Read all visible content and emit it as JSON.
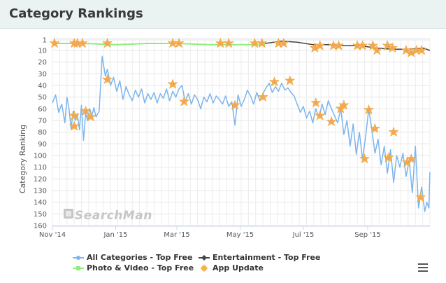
{
  "header": {
    "title": "Category Rankings"
  },
  "watermark": "SearchMan",
  "colors": {
    "all_categories": "#7cb5ec",
    "photo_video": "#90ed7d",
    "entertainment": "#434348",
    "app_update": "#f7a35c"
  },
  "legend": {
    "all_categories": "All Categories - Top Free",
    "entertainment": "Entertainment - Top Free",
    "photo_video": "Photo & Video - Top Free",
    "app_update": "App Update"
  },
  "menu_icon": "hamburger-menu-icon",
  "chart_data": {
    "type": "line",
    "title": "Category Rankings",
    "xlabel": "",
    "ylabel": "Category Ranking",
    "y_reversed": true,
    "ylim": [
      1,
      160
    ],
    "yticks": [
      1,
      10,
      20,
      30,
      40,
      50,
      60,
      70,
      80,
      90,
      100,
      110,
      120,
      130,
      140,
      150,
      160
    ],
    "x_range": [
      "2014-11-01",
      "2015-10-31"
    ],
    "xticks": [
      {
        "date": "2014-11-01",
        "label": "Nov '14"
      },
      {
        "date": "2015-01-01",
        "label": "Jan '15"
      },
      {
        "date": "2015-03-01",
        "label": "Mar '15"
      },
      {
        "date": "2015-05-01",
        "label": "May '15"
      },
      {
        "date": "2015-07-01",
        "label": "Jul '15"
      },
      {
        "date": "2015-09-01",
        "label": "Sep '15"
      }
    ],
    "grid": true,
    "legend_position": "bottom",
    "series": [
      {
        "name": "All Categories - Top Free",
        "points": [
          [
            "2014-11-01",
            55
          ],
          [
            "2014-11-04",
            48
          ],
          [
            "2014-11-07",
            63
          ],
          [
            "2014-11-10",
            56
          ],
          [
            "2014-11-13",
            72
          ],
          [
            "2014-11-15",
            50
          ],
          [
            "2014-11-17",
            60
          ],
          [
            "2014-11-19",
            77
          ],
          [
            "2014-11-21",
            62
          ],
          [
            "2014-11-23",
            70
          ],
          [
            "2014-11-25",
            64
          ],
          [
            "2014-11-27",
            78
          ],
          [
            "2014-11-29",
            57
          ],
          [
            "2014-12-01",
            87
          ],
          [
            "2014-12-03",
            64
          ],
          [
            "2014-12-05",
            70
          ],
          [
            "2014-12-07",
            60
          ],
          [
            "2014-12-09",
            66
          ],
          [
            "2014-12-11",
            59
          ],
          [
            "2014-12-13",
            67
          ],
          [
            "2014-12-16",
            62
          ],
          [
            "2014-12-19",
            15
          ],
          [
            "2014-12-22",
            32
          ],
          [
            "2014-12-24",
            26
          ],
          [
            "2014-12-27",
            40
          ],
          [
            "2014-12-30",
            33
          ],
          [
            "2015-01-02",
            45
          ],
          [
            "2015-01-05",
            36
          ],
          [
            "2015-01-08",
            52
          ],
          [
            "2015-01-11",
            41
          ],
          [
            "2015-01-14",
            48
          ],
          [
            "2015-01-17",
            53
          ],
          [
            "2015-01-20",
            44
          ],
          [
            "2015-01-23",
            50
          ],
          [
            "2015-01-26",
            43
          ],
          [
            "2015-01-29",
            55
          ],
          [
            "2015-02-01",
            47
          ],
          [
            "2015-02-04",
            52
          ],
          [
            "2015-02-07",
            46
          ],
          [
            "2015-02-10",
            55
          ],
          [
            "2015-02-13",
            47
          ],
          [
            "2015-02-16",
            51
          ],
          [
            "2015-02-19",
            43
          ],
          [
            "2015-02-22",
            53
          ],
          [
            "2015-02-25",
            45
          ],
          [
            "2015-02-28",
            50
          ],
          [
            "2015-03-03",
            43
          ],
          [
            "2015-03-06",
            40
          ],
          [
            "2015-03-09",
            54
          ],
          [
            "2015-03-12",
            47
          ],
          [
            "2015-03-15",
            56
          ],
          [
            "2015-03-18",
            48
          ],
          [
            "2015-03-21",
            52
          ],
          [
            "2015-03-24",
            60
          ],
          [
            "2015-03-27",
            50
          ],
          [
            "2015-03-30",
            54
          ],
          [
            "2015-04-02",
            47
          ],
          [
            "2015-04-05",
            55
          ],
          [
            "2015-04-08",
            49
          ],
          [
            "2015-04-11",
            52
          ],
          [
            "2015-04-14",
            56
          ],
          [
            "2015-04-17",
            49
          ],
          [
            "2015-04-20",
            58
          ],
          [
            "2015-04-23",
            54
          ],
          [
            "2015-04-26",
            74
          ],
          [
            "2015-04-29",
            48
          ],
          [
            "2015-05-02",
            58
          ],
          [
            "2015-05-05",
            52
          ],
          [
            "2015-05-08",
            44
          ],
          [
            "2015-05-11",
            49
          ],
          [
            "2015-05-14",
            56
          ],
          [
            "2015-05-17",
            46
          ],
          [
            "2015-05-20",
            53
          ],
          [
            "2015-05-23",
            47
          ],
          [
            "2015-05-26",
            42
          ],
          [
            "2015-05-29",
            38
          ],
          [
            "2015-06-01",
            46
          ],
          [
            "2015-06-04",
            41
          ],
          [
            "2015-06-07",
            45
          ],
          [
            "2015-06-10",
            38
          ],
          [
            "2015-06-13",
            44
          ],
          [
            "2015-06-16",
            42
          ],
          [
            "2015-06-19",
            46
          ],
          [
            "2015-06-22",
            49
          ],
          [
            "2015-06-25",
            56
          ],
          [
            "2015-06-28",
            63
          ],
          [
            "2015-07-01",
            58
          ],
          [
            "2015-07-04",
            68
          ],
          [
            "2015-07-07",
            62
          ],
          [
            "2015-07-10",
            72
          ],
          [
            "2015-07-13",
            60
          ],
          [
            "2015-07-16",
            68
          ],
          [
            "2015-07-19",
            56
          ],
          [
            "2015-07-22",
            65
          ],
          [
            "2015-07-25",
            53
          ],
          [
            "2015-07-28",
            60
          ],
          [
            "2015-07-31",
            66
          ],
          [
            "2015-08-03",
            72
          ],
          [
            "2015-08-06",
            60
          ],
          [
            "2015-08-09",
            82
          ],
          [
            "2015-08-12",
            70
          ],
          [
            "2015-08-15",
            92
          ],
          [
            "2015-08-18",
            73
          ],
          [
            "2015-08-21",
            99
          ],
          [
            "2015-08-24",
            80
          ],
          [
            "2015-08-27",
            103
          ],
          [
            "2015-08-30",
            84
          ],
          [
            "2015-09-02",
            60
          ],
          [
            "2015-09-05",
            78
          ],
          [
            "2015-09-08",
            98
          ],
          [
            "2015-09-11",
            86
          ],
          [
            "2015-09-14",
            108
          ],
          [
            "2015-09-17",
            92
          ],
          [
            "2015-09-20",
            115
          ],
          [
            "2015-09-23",
            95
          ],
          [
            "2015-09-26",
            123
          ],
          [
            "2015-09-29",
            100
          ],
          [
            "2015-10-02",
            110
          ],
          [
            "2015-10-05",
            98
          ],
          [
            "2015-10-08",
            118
          ],
          [
            "2015-10-11",
            104
          ],
          [
            "2015-10-14",
            132
          ],
          [
            "2015-10-17",
            92
          ],
          [
            "2015-10-20",
            145
          ],
          [
            "2015-10-23",
            127
          ],
          [
            "2015-10-26",
            148
          ],
          [
            "2015-10-28",
            140
          ],
          [
            "2015-10-30",
            145
          ],
          [
            "2015-10-31",
            114
          ]
        ]
      },
      {
        "name": "Photo & Video - Top Free",
        "points": [
          [
            "2014-11-01",
            4
          ],
          [
            "2014-12-01",
            4
          ],
          [
            "2015-01-01",
            5
          ],
          [
            "2015-02-01",
            4
          ],
          [
            "2015-03-01",
            4
          ],
          [
            "2015-04-01",
            5
          ],
          [
            "2015-05-01",
            5
          ],
          [
            "2015-05-25",
            5
          ]
        ]
      },
      {
        "name": "Entertainment - Top Free",
        "points": [
          [
            "2015-05-25",
            4
          ],
          [
            "2015-06-10",
            2
          ],
          [
            "2015-06-25",
            3
          ],
          [
            "2015-07-10",
            5
          ],
          [
            "2015-07-25",
            5
          ],
          [
            "2015-08-10",
            6
          ],
          [
            "2015-08-25",
            6
          ],
          [
            "2015-09-10",
            8
          ],
          [
            "2015-09-25",
            9
          ],
          [
            "2015-10-10",
            9
          ],
          [
            "2015-10-25",
            8
          ],
          [
            "2015-10-31",
            10
          ]
        ]
      },
      {
        "name": "App Update",
        "points": [
          [
            "2014-11-03",
            4
          ],
          [
            "2014-11-22",
            4
          ],
          [
            "2014-11-25",
            4
          ],
          [
            "2014-11-30",
            4
          ],
          [
            "2014-12-24",
            4
          ],
          [
            "2015-02-25",
            4
          ],
          [
            "2015-03-03",
            4
          ],
          [
            "2015-04-12",
            4
          ],
          [
            "2015-04-20",
            4
          ],
          [
            "2015-05-15",
            4
          ],
          [
            "2015-05-22",
            4
          ],
          [
            "2015-06-07",
            4
          ],
          [
            "2015-06-12",
            4
          ],
          [
            "2015-07-12",
            8
          ],
          [
            "2015-07-17",
            6
          ],
          [
            "2015-07-30",
            6
          ],
          [
            "2015-08-04",
            6
          ],
          [
            "2015-08-22",
            6
          ],
          [
            "2015-08-27",
            6
          ],
          [
            "2015-09-06",
            6
          ],
          [
            "2015-09-10",
            10
          ],
          [
            "2015-09-20",
            6
          ],
          [
            "2015-09-25",
            8
          ],
          [
            "2015-10-08",
            10
          ],
          [
            "2015-10-13",
            12
          ],
          [
            "2015-10-18",
            10
          ],
          [
            "2015-10-23",
            10
          ],
          [
            "2014-11-22",
            66
          ],
          [
            "2014-11-22",
            75
          ],
          [
            "2014-12-03",
            62
          ],
          [
            "2014-12-08",
            67
          ],
          [
            "2014-12-24",
            35
          ],
          [
            "2015-02-25",
            39
          ],
          [
            "2015-03-08",
            54
          ],
          [
            "2015-04-26",
            57
          ],
          [
            "2015-05-23",
            50
          ],
          [
            "2015-06-03",
            37
          ],
          [
            "2015-06-18",
            36
          ],
          [
            "2015-07-13",
            55
          ],
          [
            "2015-07-17",
            66
          ],
          [
            "2015-07-28",
            71
          ],
          [
            "2015-08-06",
            60
          ],
          [
            "2015-08-09",
            57
          ],
          [
            "2015-08-29",
            103
          ],
          [
            "2015-09-02",
            61
          ],
          [
            "2015-09-08",
            77
          ],
          [
            "2015-09-21",
            102
          ],
          [
            "2015-09-26",
            80
          ],
          [
            "2015-10-09",
            106
          ],
          [
            "2015-10-13",
            103
          ],
          [
            "2015-10-22",
            136
          ]
        ]
      }
    ]
  }
}
